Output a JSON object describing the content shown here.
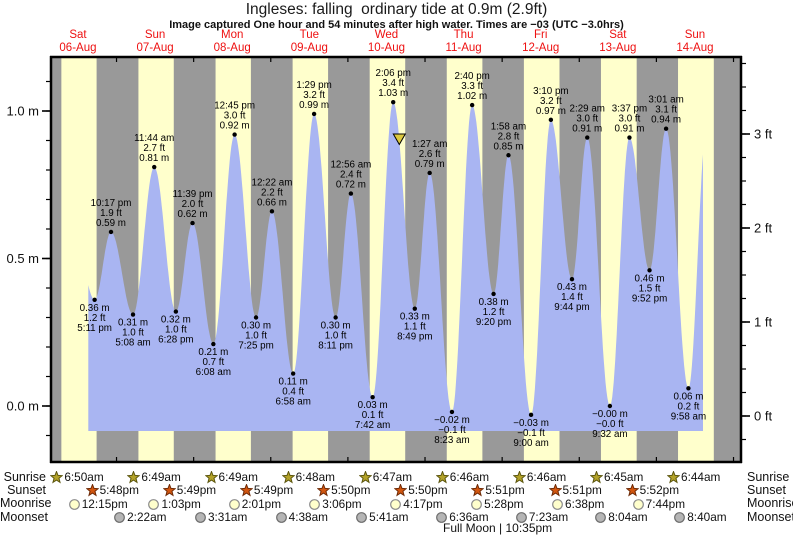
{
  "title": "Ingleses: falling  ordinary tide at 0.9m (2.9ft)",
  "subtitle": "Image captured One hour and 54 minutes after high water. Times are −03 (UTC −3.0hrs)",
  "days": [
    {
      "name": "Sat",
      "date": "06-Aug"
    },
    {
      "name": "Sun",
      "date": "07-Aug"
    },
    {
      "name": "Mon",
      "date": "08-Aug"
    },
    {
      "name": "Tue",
      "date": "09-Aug"
    },
    {
      "name": "Wed",
      "date": "10-Aug"
    },
    {
      "name": "Thu",
      "date": "11-Aug"
    },
    {
      "name": "Fri",
      "date": "12-Aug"
    },
    {
      "name": "Sat",
      "date": "13-Aug"
    },
    {
      "name": "Sun",
      "date": "14-Aug"
    }
  ],
  "chart_data": {
    "type": "area",
    "title": "Ingleses: falling ordinary tide at 0.9m (2.9ft)",
    "x_unit": "hours since Sat 06-Aug 00:00 (local, UTC−3)",
    "ylim_m": [
      -0.19,
      1.18
    ],
    "m_ticks": [
      {
        "label": "1.0 m",
        "v": 1.0
      },
      {
        "label": "0.5 m",
        "v": 0.5
      },
      {
        "label": "0.0 m",
        "v": 0.0
      }
    ],
    "m_minor_step": 0.1,
    "ft_ticks": [
      {
        "label": "3 ft",
        "f": 3
      },
      {
        "label": "2 ft",
        "f": 2
      },
      {
        "label": "1 ft",
        "f": 1
      },
      {
        "label": "0 ft",
        "f": 0
      }
    ],
    "ft_minor_step": 0.25,
    "extremes": [
      {
        "kind": "low",
        "m": "0.36 m",
        "ft": "1.2 ft",
        "time": "5:11 pm",
        "t": 17.183,
        "v": 0.36
      },
      {
        "kind": "high",
        "time": "10:17 pm",
        "ft": "1.9 ft",
        "m": "0.59 m",
        "t": 22.283,
        "v": 0.59
      },
      {
        "kind": "low",
        "m": "0.31 m",
        "ft": "1.0 ft",
        "time": "5:08 am",
        "t": 29.133,
        "v": 0.31
      },
      {
        "kind": "high",
        "time": "11:44 am",
        "ft": "2.7 ft",
        "m": "0.81 m",
        "t": 35.733,
        "v": 0.81
      },
      {
        "kind": "low",
        "m": "0.32 m",
        "ft": "1.0 ft",
        "time": "6:28 pm",
        "t": 42.467,
        "v": 0.32
      },
      {
        "kind": "high",
        "time": "11:39 pm",
        "ft": "2.0 ft",
        "m": "0.62 m",
        "t": 47.65,
        "v": 0.62
      },
      {
        "kind": "low",
        "m": "0.21 m",
        "ft": "0.7 ft",
        "time": "6:08 am",
        "t": 54.133,
        "v": 0.21
      },
      {
        "kind": "high",
        "time": "12:45 pm",
        "ft": "3.0 ft",
        "m": "0.92 m",
        "t": 60.75,
        "v": 0.92
      },
      {
        "kind": "low",
        "m": "0.30 m",
        "ft": "1.0 ft",
        "time": "7:25 pm",
        "t": 67.417,
        "v": 0.3
      },
      {
        "kind": "high",
        "time": "12:22 am",
        "ft": "2.2 ft",
        "m": "0.66 m",
        "t": 72.367,
        "v": 0.66
      },
      {
        "kind": "low",
        "m": "0.11 m",
        "ft": "0.4 ft",
        "time": "6:58 am",
        "t": 78.967,
        "v": 0.11
      },
      {
        "kind": "high",
        "time": "1:29 pm",
        "ft": "3.2 ft",
        "m": "0.99 m",
        "t": 85.483,
        "v": 0.99
      },
      {
        "kind": "low",
        "m": "0.30 m",
        "ft": "1.0 ft",
        "time": "8:11 pm",
        "t": 92.183,
        "v": 0.3
      },
      {
        "kind": "high",
        "time": "12:56 am",
        "ft": "2.4 ft",
        "m": "0.72 m",
        "t": 96.933,
        "v": 0.72
      },
      {
        "kind": "low",
        "m": "0.03 m",
        "ft": "0.1 ft",
        "time": "7:42 am",
        "t": 103.7,
        "v": 0.03
      },
      {
        "kind": "high",
        "time": "2:06 pm",
        "ft": "3.4 ft",
        "m": "1.03 m",
        "t": 110.1,
        "v": 1.03
      },
      {
        "kind": "low",
        "m": "0.33 m",
        "ft": "1.1 ft",
        "time": "8:49 pm",
        "t": 116.817,
        "v": 0.33
      },
      {
        "kind": "high",
        "time": "1:27 am",
        "ft": "2.6 ft",
        "m": "0.79 m",
        "t": 121.45,
        "v": 0.79
      },
      {
        "kind": "low",
        "m": "−0.02 m",
        "ft": "−0.1 ft",
        "time": "8:23 am",
        "t": 128.383,
        "v": -0.02
      },
      {
        "kind": "high",
        "time": "2:40 pm",
        "ft": "3.3 ft",
        "m": "1.02 m",
        "t": 134.667,
        "v": 1.02
      },
      {
        "kind": "low",
        "m": "0.38 m",
        "ft": "1.2 ft",
        "time": "9:20 pm",
        "t": 141.333,
        "v": 0.38
      },
      {
        "kind": "high",
        "time": "1:58 am",
        "ft": "2.8 ft",
        "m": "0.85 m",
        "t": 145.967,
        "v": 0.85
      },
      {
        "kind": "low",
        "m": "−0.03 m",
        "ft": "−0.1 ft",
        "time": "9:00 am",
        "t": 153.0,
        "v": -0.03
      },
      {
        "kind": "high",
        "time": "3:10 pm",
        "ft": "3.2 ft",
        "m": "0.97 m",
        "t": 159.167,
        "v": 0.97
      },
      {
        "kind": "low",
        "m": "0.43 m",
        "ft": "1.4 ft",
        "time": "9:44 pm",
        "t": 165.733,
        "v": 0.43
      },
      {
        "kind": "high",
        "time": "2:29 am",
        "ft": "3.0 ft",
        "m": "0.91 m",
        "t": 170.483,
        "v": 0.91
      },
      {
        "kind": "low",
        "m": "−0.00 m",
        "ft": "−0.0 ft",
        "time": "9:32 am",
        "t": 177.533,
        "v": 0.0
      },
      {
        "kind": "high",
        "time": "3:37 pm",
        "ft": "3.0 ft",
        "m": "0.91 m",
        "t": 183.617,
        "v": 0.91
      },
      {
        "kind": "low",
        "m": "0.46 m",
        "ft": "1.5 ft",
        "time": "9:52 pm",
        "t": 189.867,
        "v": 0.46
      },
      {
        "kind": "high",
        "time": "3:01 am",
        "ft": "3.1 ft",
        "m": "0.94 m",
        "t": 195.017,
        "v": 0.94
      },
      {
        "kind": "low",
        "m": "0.06 m",
        "ft": "0.2 ft",
        "time": "9:58 am",
        "t": 201.967,
        "v": 0.06
      }
    ],
    "lead_in": {
      "t": 10.8,
      "v": 0.59
    },
    "lead_out": {
      "t": 207.6,
      "v": 0.93
    },
    "clip_t": [
      15.0,
      206.6
    ],
    "capture_marker": {
      "t": 112.0,
      "v": 0.905
    },
    "daylight_bands_t": [
      [
        6.833,
        17.8
      ],
      [
        30.817,
        41.817
      ],
      [
        54.817,
        65.817
      ],
      [
        78.8,
        89.833
      ],
      [
        102.783,
        113.833
      ],
      [
        126.767,
        137.85
      ],
      [
        150.767,
        161.85
      ],
      [
        174.75,
        185.867
      ],
      [
        198.733,
        209.867
      ]
    ],
    "colors": {
      "day_band": "#ffffcc",
      "night_band": "#999999",
      "tide_fill": "#a9b5f2",
      "marker_fill": "#ddc93f",
      "day_label": "#ee1111",
      "axis": "#000000"
    }
  },
  "astro": {
    "row_labels": [
      "Sunrise",
      "Sunset",
      "Moonrise",
      "Moonset"
    ],
    "sunrise": [
      {
        "label": "6:50am",
        "t": 6.833
      },
      {
        "label": "6:49am",
        "t": 30.817
      },
      {
        "label": "6:49am",
        "t": 54.817
      },
      {
        "label": "6:48am",
        "t": 78.8
      },
      {
        "label": "6:47am",
        "t": 102.783
      },
      {
        "label": "6:46am",
        "t": 126.767
      },
      {
        "label": "6:46am",
        "t": 150.767
      },
      {
        "label": "6:45am",
        "t": 174.75
      },
      {
        "label": "6:44am",
        "t": 198.733
      }
    ],
    "sunset": [
      {
        "label": "5:48pm",
        "t": 17.8
      },
      {
        "label": "5:49pm",
        "t": 41.817
      },
      {
        "label": "5:49pm",
        "t": 65.817
      },
      {
        "label": "5:50pm",
        "t": 89.833
      },
      {
        "label": "5:50pm",
        "t": 113.833
      },
      {
        "label": "5:51pm",
        "t": 137.85
      },
      {
        "label": "5:51pm",
        "t": 161.85
      },
      {
        "label": "5:52pm",
        "t": 185.867
      }
    ],
    "moonrise": [
      {
        "label": "12:15pm",
        "t": 12.25
      },
      {
        "label": "1:03pm",
        "t": 37.05
      },
      {
        "label": "2:01pm",
        "t": 62.017
      },
      {
        "label": "3:06pm",
        "t": 87.1
      },
      {
        "label": "4:17pm",
        "t": 112.283
      },
      {
        "label": "5:28pm",
        "t": 137.467
      },
      {
        "label": "6:38pm",
        "t": 162.633
      },
      {
        "label": "7:44pm",
        "t": 187.733
      }
    ],
    "moonset": [
      {
        "label": "2:22am",
        "t": 26.367
      },
      {
        "label": "3:31am",
        "t": 51.517
      },
      {
        "label": "4:38am",
        "t": 76.633
      },
      {
        "label": "5:41am",
        "t": 101.683
      },
      {
        "label": "6:36am",
        "t": 126.6
      },
      {
        "label": "7:23am",
        "t": 151.383
      },
      {
        "label": "8:04am",
        "t": 176.067
      },
      {
        "label": "8:40am",
        "t": 200.667
      }
    ],
    "footer": "Full Moon | 10:35pm",
    "footer_t": 142.583,
    "icon_colors": {
      "sunrise_star": "#b3a229",
      "sunrise_star_stroke": "#5c560f",
      "sunset_star": "#d2560f",
      "sunset_star_stroke": "#6e2a06",
      "moonrise_circle": "#ffffcc",
      "moonrise_circle_stroke": "#8c8c8c",
      "moonset_circle": "#b5b5b5",
      "moonset_circle_stroke": "#6e6e6e"
    }
  }
}
